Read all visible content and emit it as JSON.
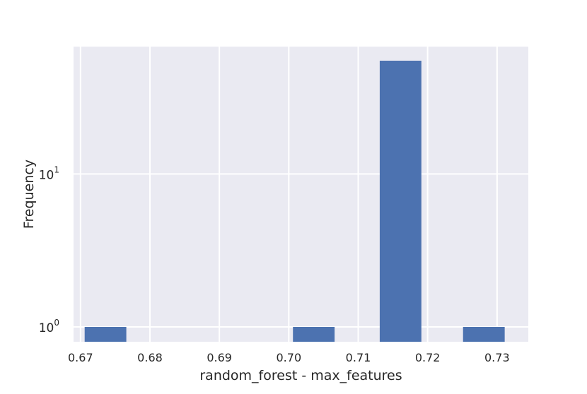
{
  "chart_data": {
    "type": "bar",
    "subtype": "histogram",
    "xlabel": "random_forest - max_features",
    "ylabel": "Frequency",
    "x_ticks": [
      "0.67",
      "0.68",
      "0.69",
      "0.70",
      "0.71",
      "0.72",
      "0.73"
    ],
    "x_tick_values": [
      0.67,
      0.68,
      0.69,
      0.7,
      0.71,
      0.72,
      0.73
    ],
    "xlim": [
      0.669,
      0.7345
    ],
    "y_scale": "log",
    "y_ticks": [
      {
        "base": "10",
        "exp": "0",
        "value": 1
      },
      {
        "base": "10",
        "exp": "1",
        "value": 10
      }
    ],
    "ylim": [
      0.8,
      68
    ],
    "bins": [
      {
        "x0": 0.6706,
        "x1": 0.6766,
        "count": 1
      },
      {
        "x0": 0.7006,
        "x1": 0.7066,
        "count": 1
      },
      {
        "x0": 0.7131,
        "x1": 0.7191,
        "count": 55
      },
      {
        "x0": 0.7251,
        "x1": 0.7311,
        "count": 1
      }
    ],
    "bar_color": "#4c72b0",
    "background_color": "#eaeaf2",
    "grid": true
  }
}
